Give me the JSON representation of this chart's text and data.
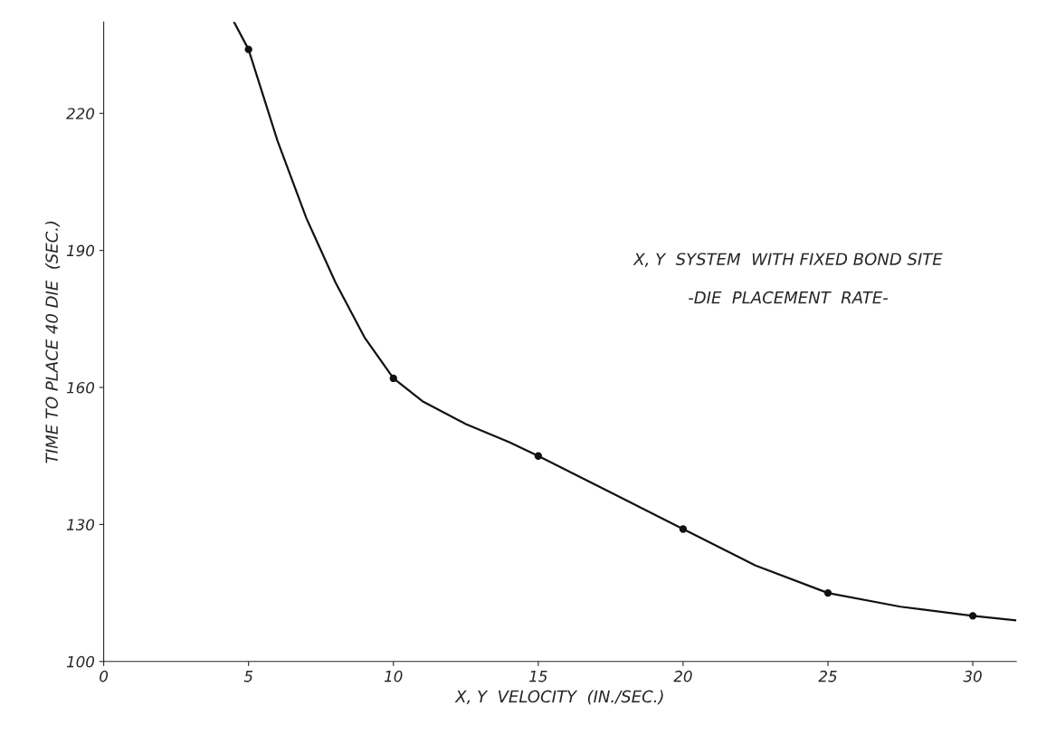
{
  "chart_data": {
    "type": "scatter",
    "xlabel": "X, Y  VELOCITY  (IN./SEC.)",
    "ylabel": "TIME TO PLACE 40 DIE  (SEC.)",
    "annotations": [
      "X, Y  SYSTEM  WITH FIXED BOND SITE",
      "-DIE  PLACEMENT  RATE-"
    ],
    "series": [
      {
        "color": "#111111",
        "x": [
          5,
          10,
          15,
          20,
          25,
          30
        ],
        "values": [
          234,
          162,
          145,
          129,
          115,
          110
        ],
        "marker": "circle"
      },
      {
        "type": "line",
        "color": "#111111",
        "x": [
          4.5,
          5,
          6,
          7,
          8,
          9,
          10,
          11,
          12.5,
          14,
          15,
          17.5,
          20,
          22.5,
          25,
          27.5,
          30,
          31.5
        ],
        "values": [
          240,
          234,
          214,
          197,
          183,
          171,
          162,
          157,
          152,
          148,
          145,
          137,
          129,
          121,
          115,
          112,
          110,
          109
        ],
        "marker": "none",
        "line_style": "solid"
      }
    ],
    "xlim": [
      0,
      31.5
    ],
    "ylim": [
      100,
      240
    ],
    "xticks": [
      0,
      5,
      10,
      15,
      20,
      25,
      30
    ],
    "yticks": [
      100,
      130,
      160,
      190,
      220
    ],
    "grid": false,
    "legend": false
  }
}
